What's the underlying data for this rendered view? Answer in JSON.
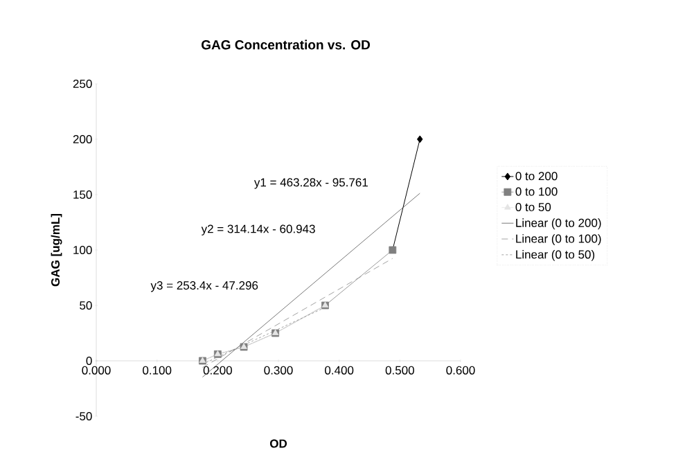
{
  "chart_data": {
    "type": "line",
    "title": "GAG Concentration vs. OD",
    "xlabel": "OD",
    "ylabel": "GAG [ug/mL]",
    "xlim": [
      0,
      0.6
    ],
    "ylim": [
      -50,
      250
    ],
    "xticks": [
      {
        "value": 0,
        "label": "0.000"
      },
      {
        "value": 0.1,
        "label": "0.100"
      },
      {
        "value": 0.2,
        "label": "0.200"
      },
      {
        "value": 0.3,
        "label": "0.300"
      },
      {
        "value": 0.4,
        "label": "0.400"
      },
      {
        "value": 0.5,
        "label": "0.500"
      },
      {
        "value": 0.6,
        "label": "0.600"
      }
    ],
    "yticks": [
      -50,
      0,
      50,
      100,
      150,
      200,
      250
    ],
    "grid": false,
    "legend": "right",
    "series": [
      {
        "name": "0 to 200",
        "color": "#000000",
        "marker": "diamond",
        "line_style": "solid",
        "x": [
          0.488,
          0.533
        ],
        "values": [
          100,
          200
        ]
      },
      {
        "name": "0 to 100",
        "color": "#808080",
        "marker": "square",
        "line_style": "solid",
        "x": [
          0.175,
          0.2,
          0.243,
          0.295,
          0.377,
          0.488
        ],
        "values": [
          0,
          6,
          12.5,
          25,
          50,
          100
        ]
      },
      {
        "name": "0 to 50",
        "color": "#e4e4e4",
        "marker": "triangle",
        "line_style": "solid",
        "x": [
          0.175,
          0.2,
          0.243,
          0.295,
          0.377
        ],
        "values": [
          0,
          6,
          12.5,
          25,
          50
        ]
      },
      {
        "name": "Linear (0 to 200)",
        "color": "#555555",
        "marker": "none",
        "line_style": "solid",
        "x": [
          0.175,
          0.533
        ],
        "values": [
          -14.7,
          151.2
        ]
      },
      {
        "name": "Linear (0 to 100)",
        "color": "#8a8a8a",
        "marker": "none",
        "line_style": "dashed",
        "x": [
          0.175,
          0.488
        ],
        "values": [
          -6.0,
          92.4
        ]
      },
      {
        "name": "Linear (0 to 50)",
        "color": "#8a8a8a",
        "marker": "none",
        "line_style": "dotted",
        "x": [
          0.175,
          0.377
        ],
        "values": [
          -3.0,
          48.2
        ]
      }
    ],
    "annotations": [
      "y1 = 463.28x - 95.761",
      "y2 = 314.14x - 60.943",
      "y3 = 253.4x - 47.296"
    ]
  }
}
